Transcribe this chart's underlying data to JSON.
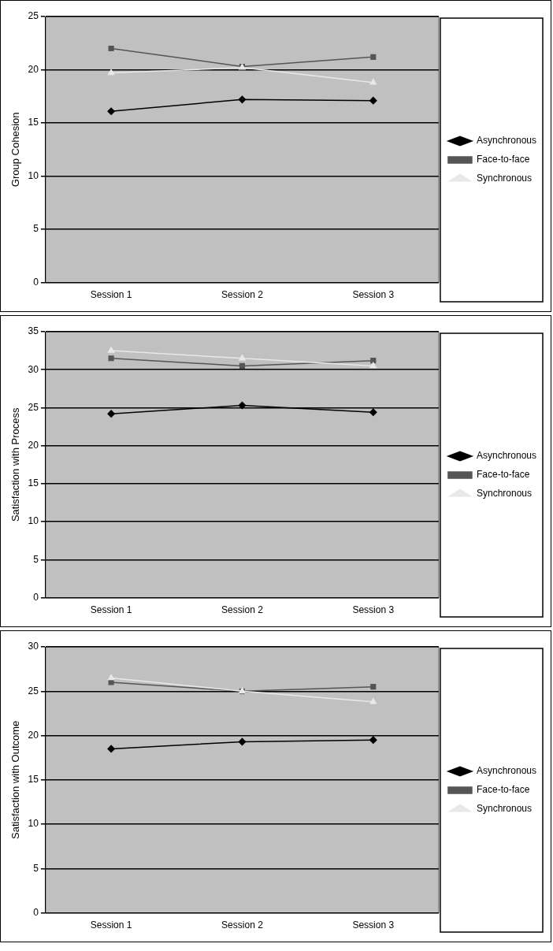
{
  "chart_data": [
    {
      "type": "line",
      "ylabel": "Group Cohesion",
      "categories": [
        "Session 1",
        "Session 2",
        "Session 3"
      ],
      "ylim": [
        0,
        25
      ],
      "yticks": [
        0,
        5,
        10,
        15,
        20,
        25
      ],
      "grid": "y",
      "legend": "right",
      "series": [
        {
          "name": "Asynchronous",
          "color": "#000000",
          "marker": "diamond",
          "values": [
            16.1,
            17.2,
            17.1
          ]
        },
        {
          "name": "Face-to-face",
          "color": "#555555",
          "marker": "square",
          "values": [
            22.0,
            20.3,
            21.2
          ]
        },
        {
          "name": "Synchronous",
          "color": "#e8e8e8",
          "marker": "triangle",
          "values": [
            19.7,
            20.2,
            18.8
          ]
        }
      ]
    },
    {
      "type": "line",
      "ylabel": "Satisfaction with Process",
      "categories": [
        "Session 1",
        "Session 2",
        "Session 3"
      ],
      "ylim": [
        0,
        35
      ],
      "yticks": [
        0,
        5,
        10,
        15,
        20,
        25,
        30,
        35
      ],
      "grid": "y",
      "legend": "right",
      "series": [
        {
          "name": "Asynchronous",
          "color": "#000000",
          "marker": "diamond",
          "values": [
            24.2,
            25.3,
            24.4
          ]
        },
        {
          "name": "Face-to-face",
          "color": "#555555",
          "marker": "square",
          "values": [
            31.5,
            30.5,
            31.2
          ]
        },
        {
          "name": "Synchronous",
          "color": "#e8e8e8",
          "marker": "triangle",
          "values": [
            32.5,
            31.5,
            30.5
          ]
        }
      ]
    },
    {
      "type": "line",
      "ylabel": "Satisfaction with Outcome",
      "categories": [
        "Session 1",
        "Session 2",
        "Session 3"
      ],
      "ylim": [
        0,
        30
      ],
      "yticks": [
        0,
        5,
        10,
        15,
        20,
        25,
        30
      ],
      "grid": "y",
      "legend": "right",
      "series": [
        {
          "name": "Asynchronous",
          "color": "#000000",
          "marker": "diamond",
          "values": [
            18.5,
            19.3,
            19.5
          ]
        },
        {
          "name": "Face-to-face",
          "color": "#555555",
          "marker": "square",
          "values": [
            26.0,
            25.0,
            25.5
          ]
        },
        {
          "name": "Synchronous",
          "color": "#e8e8e8",
          "marker": "triangle",
          "values": [
            26.5,
            25.0,
            23.8
          ]
        }
      ]
    }
  ]
}
